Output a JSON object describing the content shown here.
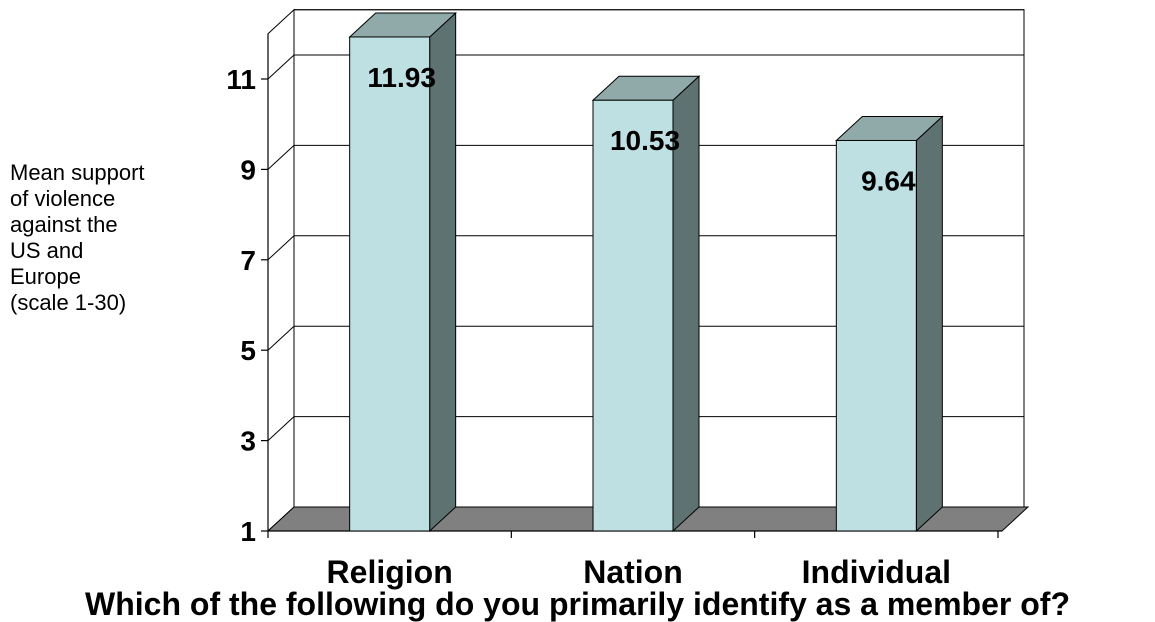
{
  "chart_data": {
    "type": "bar",
    "categories": [
      "Religion",
      "Nation",
      "Individual"
    ],
    "values": [
      11.93,
      10.53,
      9.64
    ],
    "data_labels": [
      "11.93",
      "10.53",
      "9.64"
    ],
    "ylabel_lines": [
      "Mean support",
      "of violence",
      "against the",
      "US and",
      "Europe",
      "(scale 1-30)"
    ],
    "xlabel": "Which of the following do you primarily identify as a member of?",
    "yticks": [
      1,
      3,
      5,
      7,
      9,
      11
    ],
    "ylim": [
      1,
      12
    ],
    "grid": true,
    "style": "3d-bar"
  },
  "colors": {
    "bar_front": "#bfe0e3",
    "bar_top": "#8faaa9",
    "bar_side": "#5f7272",
    "floor": "#808080",
    "gridline": "#000000"
  }
}
